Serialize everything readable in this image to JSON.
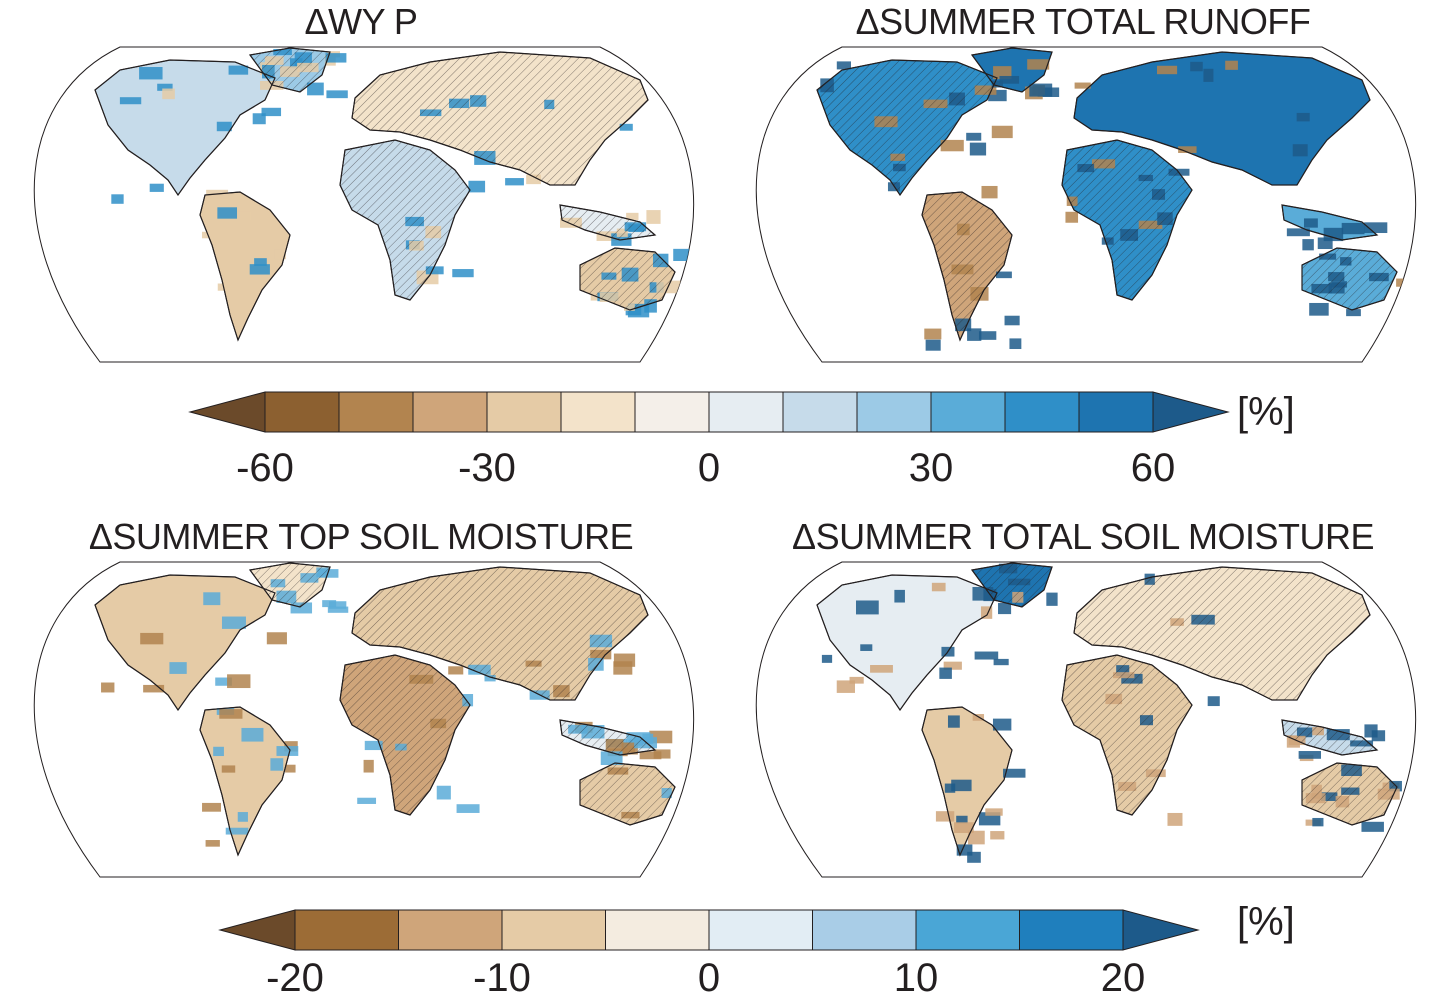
{
  "panels": [
    {
      "title": "ΔWY P",
      "colorbar": "a"
    },
    {
      "title": "ΔSUMMER TOTAL RUNOFF",
      "colorbar": "a"
    },
    {
      "title": "ΔSUMMER TOP SOIL MOISTURE",
      "colorbar": "b"
    },
    {
      "title": "ΔSUMMER TOTAL SOIL MOISTURE",
      "colorbar": "b"
    }
  ],
  "colorbars": {
    "a": {
      "unit": "[%]",
      "min": -60,
      "max": 60,
      "ticks": [
        "-60",
        "-30",
        "0",
        "30",
        "60"
      ],
      "colors": [
        "#8c6030",
        "#b2844f",
        "#cfa57a",
        "#e5cba6",
        "#f3e3ca",
        "#f4efe9",
        "#e6edf2",
        "#c6dbea",
        "#9ccae6",
        "#5aacd8",
        "#2f8fc8",
        "#1e74b0"
      ],
      "extend_low": "#6b4a2a",
      "extend_high": "#1d5a8a"
    },
    "b": {
      "unit": "[%]",
      "min": -20,
      "max": 20,
      "ticks": [
        "-20",
        "-10",
        "0",
        "10",
        "20"
      ],
      "colors": [
        "#9c6c36",
        "#cfa57a",
        "#e5cba6",
        "#f4ece0",
        "#e2edf4",
        "#a9cde7",
        "#4aa6d6",
        "#1f7fbd"
      ],
      "extend_low": "#6b4a2a",
      "extend_high": "#1d5a8a"
    }
  }
}
